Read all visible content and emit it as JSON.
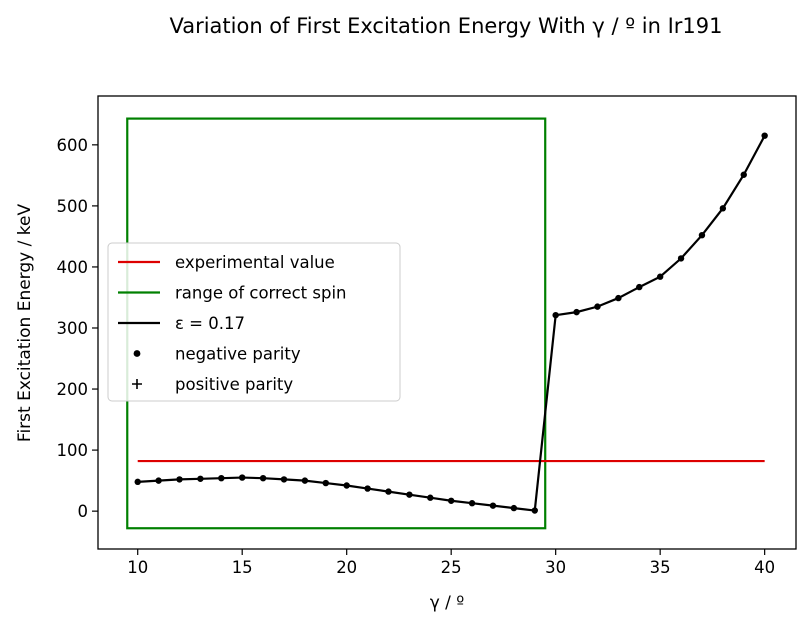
{
  "chart_data": {
    "type": "line",
    "title": "Variation of First Excitation Energy With γ / º in Ir191",
    "xlabel": "γ / º",
    "ylabel": "First Excitation Energy / keV",
    "xlim": [
      8.1,
      41.5
    ],
    "ylim": [
      -62,
      680
    ],
    "xticks": [
      10,
      15,
      20,
      25,
      30,
      35,
      40
    ],
    "yticks": [
      0,
      100,
      200,
      300,
      400,
      500,
      600
    ],
    "grid": false,
    "legend_position": "center-left",
    "legend": [
      {
        "label": "experimental value",
        "kind": "line",
        "color": "#dd0000"
      },
      {
        "label": "range of correct spin",
        "kind": "line",
        "color": "#008000"
      },
      {
        "label": "ε = 0.17",
        "kind": "line",
        "color": "#000000"
      },
      {
        "label": "negative parity",
        "kind": "dot",
        "color": "#000000"
      },
      {
        "label": "positive parity",
        "kind": "plus",
        "color": "#000000"
      }
    ],
    "experimental_value": {
      "name": "experimental value",
      "x": [
        10,
        40
      ],
      "y": 82,
      "color": "#dd0000"
    },
    "spin_range_box": {
      "name": "range of correct spin",
      "x": [
        9.5,
        29.5
      ],
      "y": [
        -28,
        643
      ],
      "color": "#008000"
    },
    "series": [
      {
        "name": "ε = 0.17",
        "color": "#000000",
        "marker": "negative parity",
        "x": [
          10,
          11,
          12,
          13,
          14,
          15,
          16,
          17,
          18,
          19,
          20,
          21,
          22,
          23,
          24,
          25,
          26,
          27,
          28,
          29,
          30,
          31,
          32,
          33,
          34,
          35,
          36,
          37,
          38,
          39,
          40
        ],
        "y": [
          48,
          50,
          52,
          53,
          54,
          55,
          54,
          52,
          50,
          46,
          42,
          37,
          32,
          27,
          22,
          17,
          13,
          9,
          5,
          1,
          321,
          326,
          335,
          349,
          367,
          384,
          414,
          452,
          496,
          551,
          615
        ]
      }
    ]
  }
}
